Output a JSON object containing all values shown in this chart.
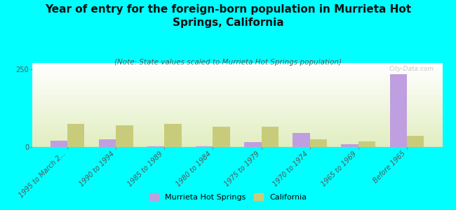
{
  "title": "Year of entry for the foreign-born population in Murrieta Hot\nSprings, California",
  "subtitle": "(Note: State values scaled to Murrieta Hot Springs population)",
  "categories": [
    "1995 to March 2...",
    "1990 to 1994",
    "1985 to 1989",
    "1980 to 1984",
    "1975 to 1979",
    "1970 to 1974",
    "1965 to 1969",
    "Before 1965"
  ],
  "murrieta_values": [
    20,
    25,
    2,
    2,
    15,
    45,
    8,
    235
  ],
  "california_values": [
    75,
    70,
    75,
    65,
    65,
    25,
    18,
    35
  ],
  "murrieta_color": "#bf9fdf",
  "california_color": "#c8cc7a",
  "background_color": "#00ffff",
  "ylim": [
    0,
    270
  ],
  "yticks": [
    0,
    250
  ],
  "bar_width": 0.35,
  "watermark": "City-Data.com",
  "title_fontsize": 11,
  "subtitle_fontsize": 7.5,
  "tick_fontsize": 7
}
